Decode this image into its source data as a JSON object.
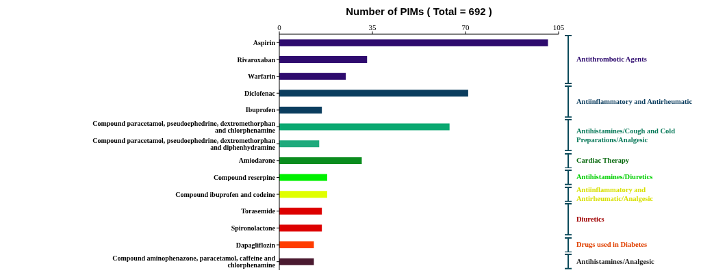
{
  "chart_data": {
    "type": "bar",
    "orientation": "horizontal",
    "title": "Number of PIMs ( Total = 692 )",
    "categories": [
      "Aspirin",
      "Rivaroxaban",
      "Warfarin",
      "Diclofenac",
      "Ibuprofen",
      "Compound paracetamol, pseudoephedrine, dextromethorphan and chlorphenamine",
      "Compound paracetamol, pseudoephedrine, dextromethorphan and diphenhydramine",
      "Amiodarone",
      "Compound reserpine",
      "Compound ibuprofen and codeine",
      "Torasemide",
      "Spironolactone",
      "Dapagliflozin",
      "Compound aminophenazone, paracetamol, caffeine and chlorphenamine"
    ],
    "values": [
      101,
      33,
      25,
      71,
      16,
      64,
      15,
      31,
      18,
      18,
      16,
      16,
      13,
      13
    ],
    "colors": [
      "#2e0b6e",
      "#2e0b6e",
      "#2e0b6e",
      "#0b3d5e",
      "#0b3d5e",
      "#0aa870",
      "#1eaa7c",
      "#0a8c1e",
      "#00f000",
      "#e0ff00",
      "#dd0000",
      "#dd0000",
      "#ff3c00",
      "#4a1a30"
    ],
    "xlim": [
      0,
      105
    ],
    "xticks": [
      0,
      35,
      70,
      105
    ],
    "annotations": [
      {
        "text": "Antithrombotic  Agents"
      },
      {
        "text": "Antiinflammatory  and  Antirheumatic"
      },
      {
        "text": "Antihistamines/Cough  and  Cold Preparations/Analgesic"
      },
      {
        "text": "Cardiac  Therapy"
      },
      {
        "text": "Antihistamines/Diuretics"
      },
      {
        "text": "Antiinflammatory  and Antirheumatic/Analgesic"
      },
      {
        "text": "Diuretics"
      },
      {
        "text": "Drugs used in Diabetes"
      },
      {
        "text": "Antihistamines/Analgesic"
      }
    ]
  }
}
